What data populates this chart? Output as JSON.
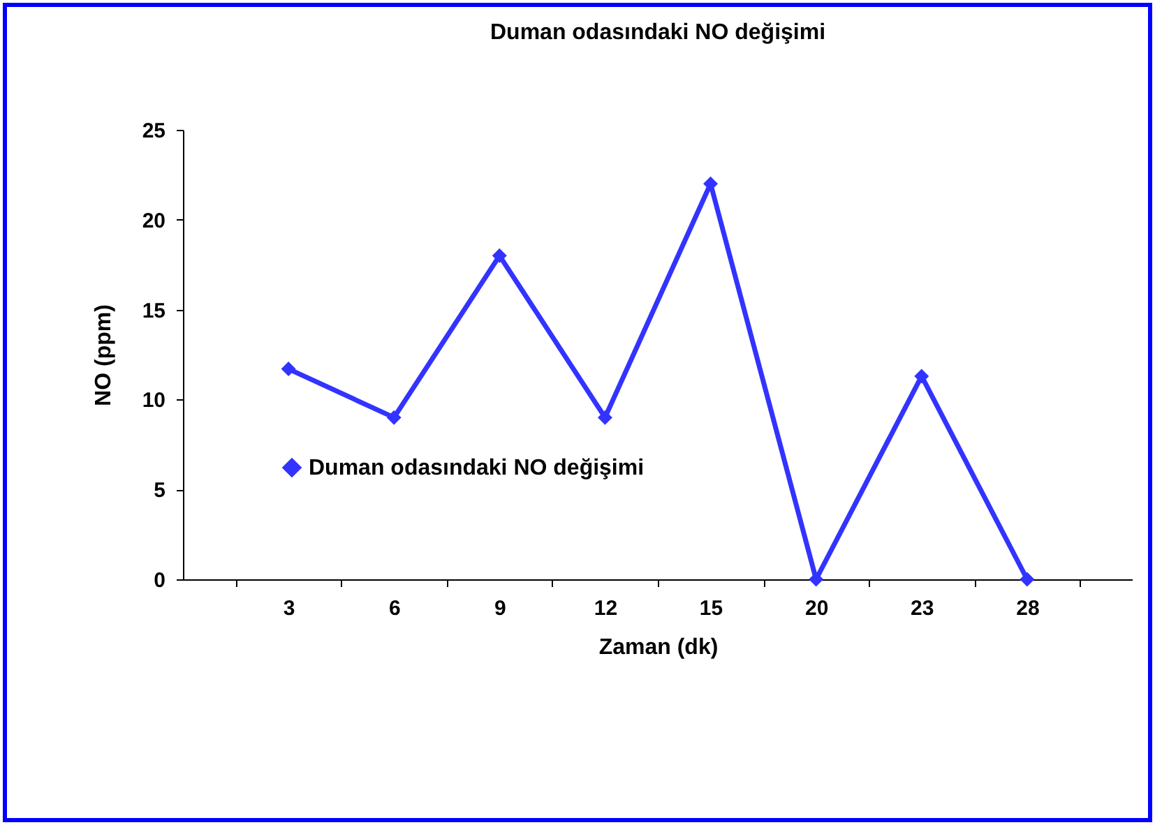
{
  "chart_data": {
    "type": "line",
    "title": "Duman odasındaki NO değişimi",
    "xlabel": "Zaman (dk)",
    "ylabel": "NO (ppm)",
    "categories": [
      "3",
      "6",
      "9",
      "12",
      "15",
      "20",
      "23",
      "28"
    ],
    "series": [
      {
        "name": "Duman odasındaki NO değişimi",
        "color": "#3333ff",
        "values": [
          11.7,
          9,
          18,
          9,
          22,
          0,
          11.3,
          0
        ]
      }
    ],
    "ylim": [
      0,
      25
    ],
    "yticks": [
      0,
      5,
      10,
      15,
      20,
      25
    ],
    "grid": false,
    "legend": "bottom left",
    "marker": "diamond",
    "line_style": "solid"
  }
}
